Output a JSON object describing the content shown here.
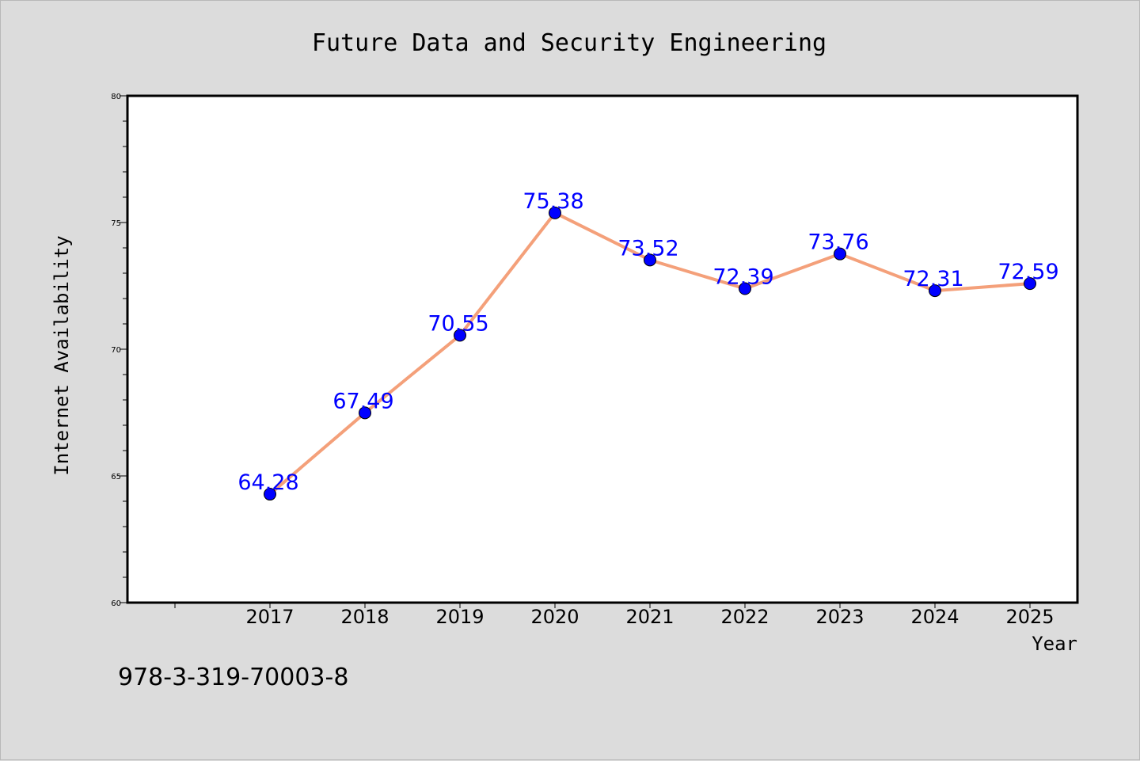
{
  "chart_data": {
    "type": "line",
    "title": "Future Data and Security Engineering",
    "xlabel": "Year",
    "ylabel": "Internet Availability",
    "categories": [
      "2017",
      "2018",
      "2019",
      "2020",
      "2021",
      "2022",
      "2023",
      "2024",
      "2025"
    ],
    "series": [
      {
        "values": [
          64.28,
          67.49,
          70.55,
          75.38,
          73.52,
          72.39,
          73.76,
          72.31,
          72.59
        ],
        "labels": [
          "64.28",
          "67.49",
          "70.55",
          "75.38",
          "73.52",
          "72.39",
          "73.76",
          "72.31",
          "72.59"
        ]
      }
    ],
    "ylim": [
      60,
      80
    ],
    "yticks": [
      "60",
      "65",
      "70",
      "75",
      "80"
    ],
    "grid": false,
    "colors": {
      "line": "#f4a07a",
      "marker": "#0000ff",
      "data_label": "#0000ff",
      "background": "#dcdcdc",
      "plot_area": "#ffffff"
    }
  },
  "footer": {
    "isbn": "978-3-319-70003-8"
  }
}
